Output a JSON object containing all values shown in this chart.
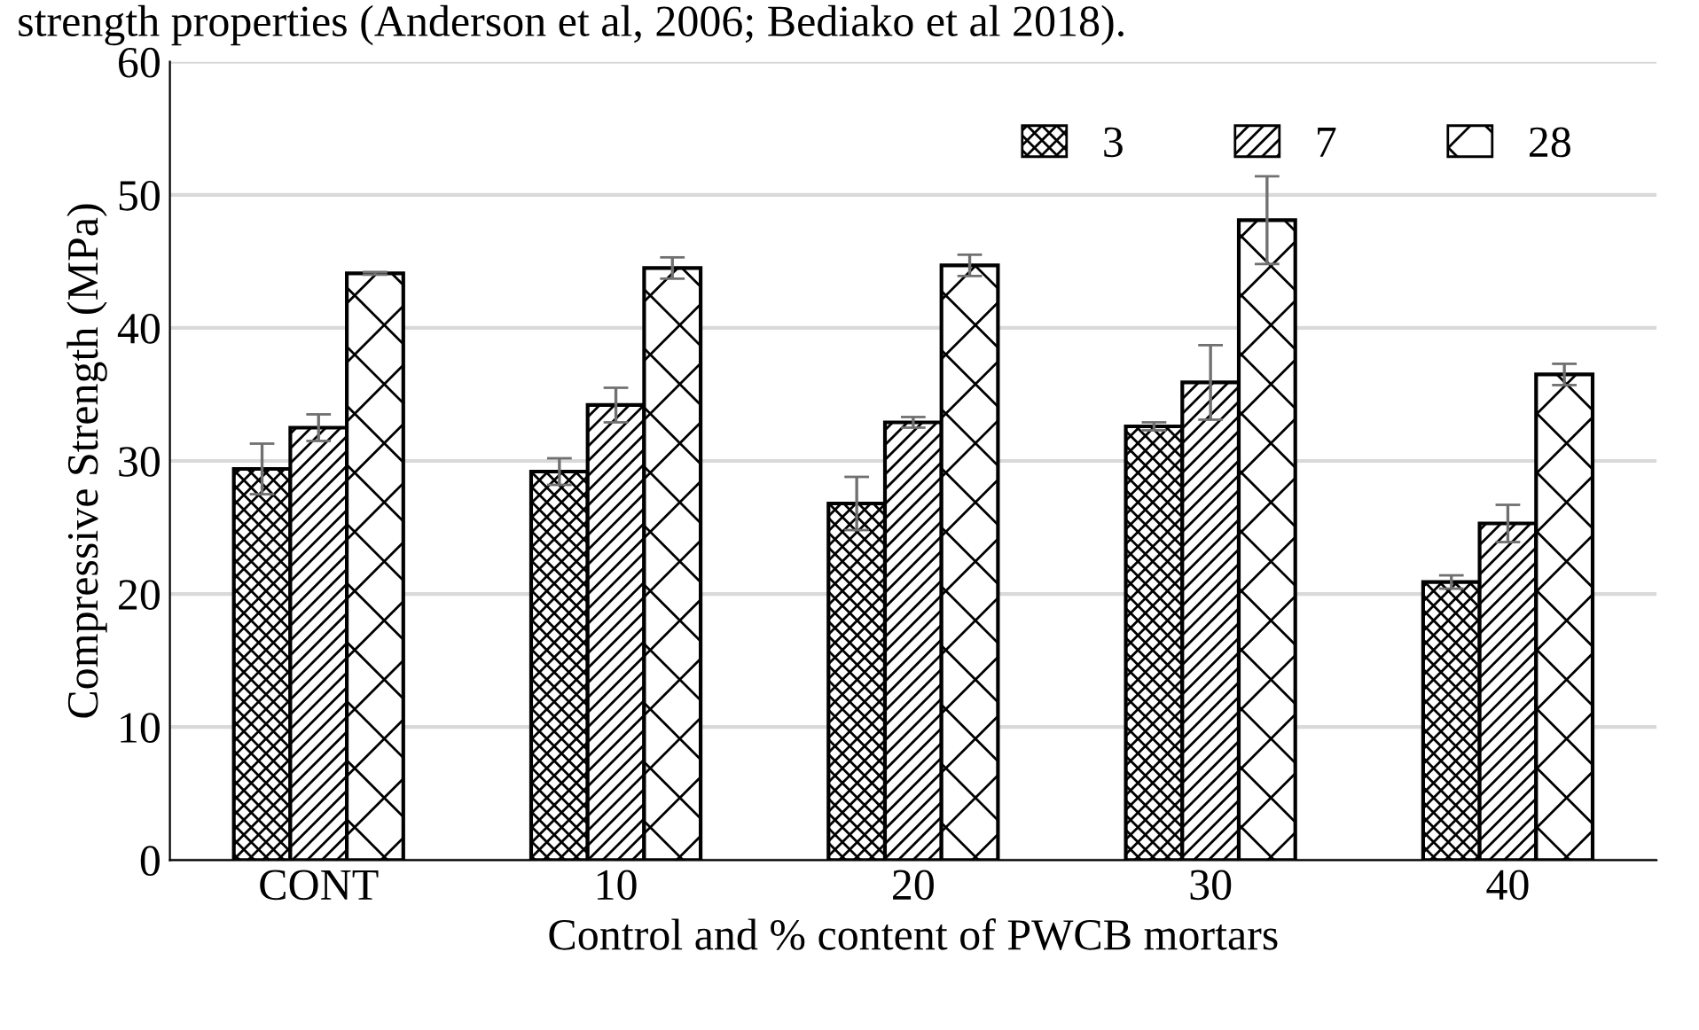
{
  "chart_data": {
    "type": "bar",
    "xlabel": "Control and % content of PWCB mortars",
    "ylabel": "Compressive Strength (MPa)",
    "annotations": [
      "strength properties (Anderson et al, 2006; Bediako et al 2018)."
    ],
    "categories": [
      "CONT",
      "10",
      "20",
      "30",
      "40"
    ],
    "series": [
      {
        "name": "3",
        "color": "#000000",
        "values": [
          29.4,
          29.2,
          26.8,
          32.6,
          20.9
        ],
        "errors": [
          1.9,
          1.0,
          2.0,
          0.3,
          0.5
        ]
      },
      {
        "name": "7",
        "color": "#000000",
        "values": [
          32.5,
          34.2,
          32.9,
          35.9,
          25.3
        ],
        "errors": [
          1.0,
          1.3,
          0.4,
          2.8,
          1.4
        ]
      },
      {
        "name": "28",
        "color": "#000000",
        "values": [
          44.1,
          44.5,
          44.7,
          48.1,
          36.5
        ],
        "errors": [
          0.1,
          0.8,
          0.8,
          3.3,
          0.8
        ]
      }
    ],
    "ylim": [
      0,
      60
    ],
    "yticks": [
      0,
      10,
      20,
      30,
      40,
      50,
      60
    ],
    "grid": "y",
    "legend": "top right"
  }
}
